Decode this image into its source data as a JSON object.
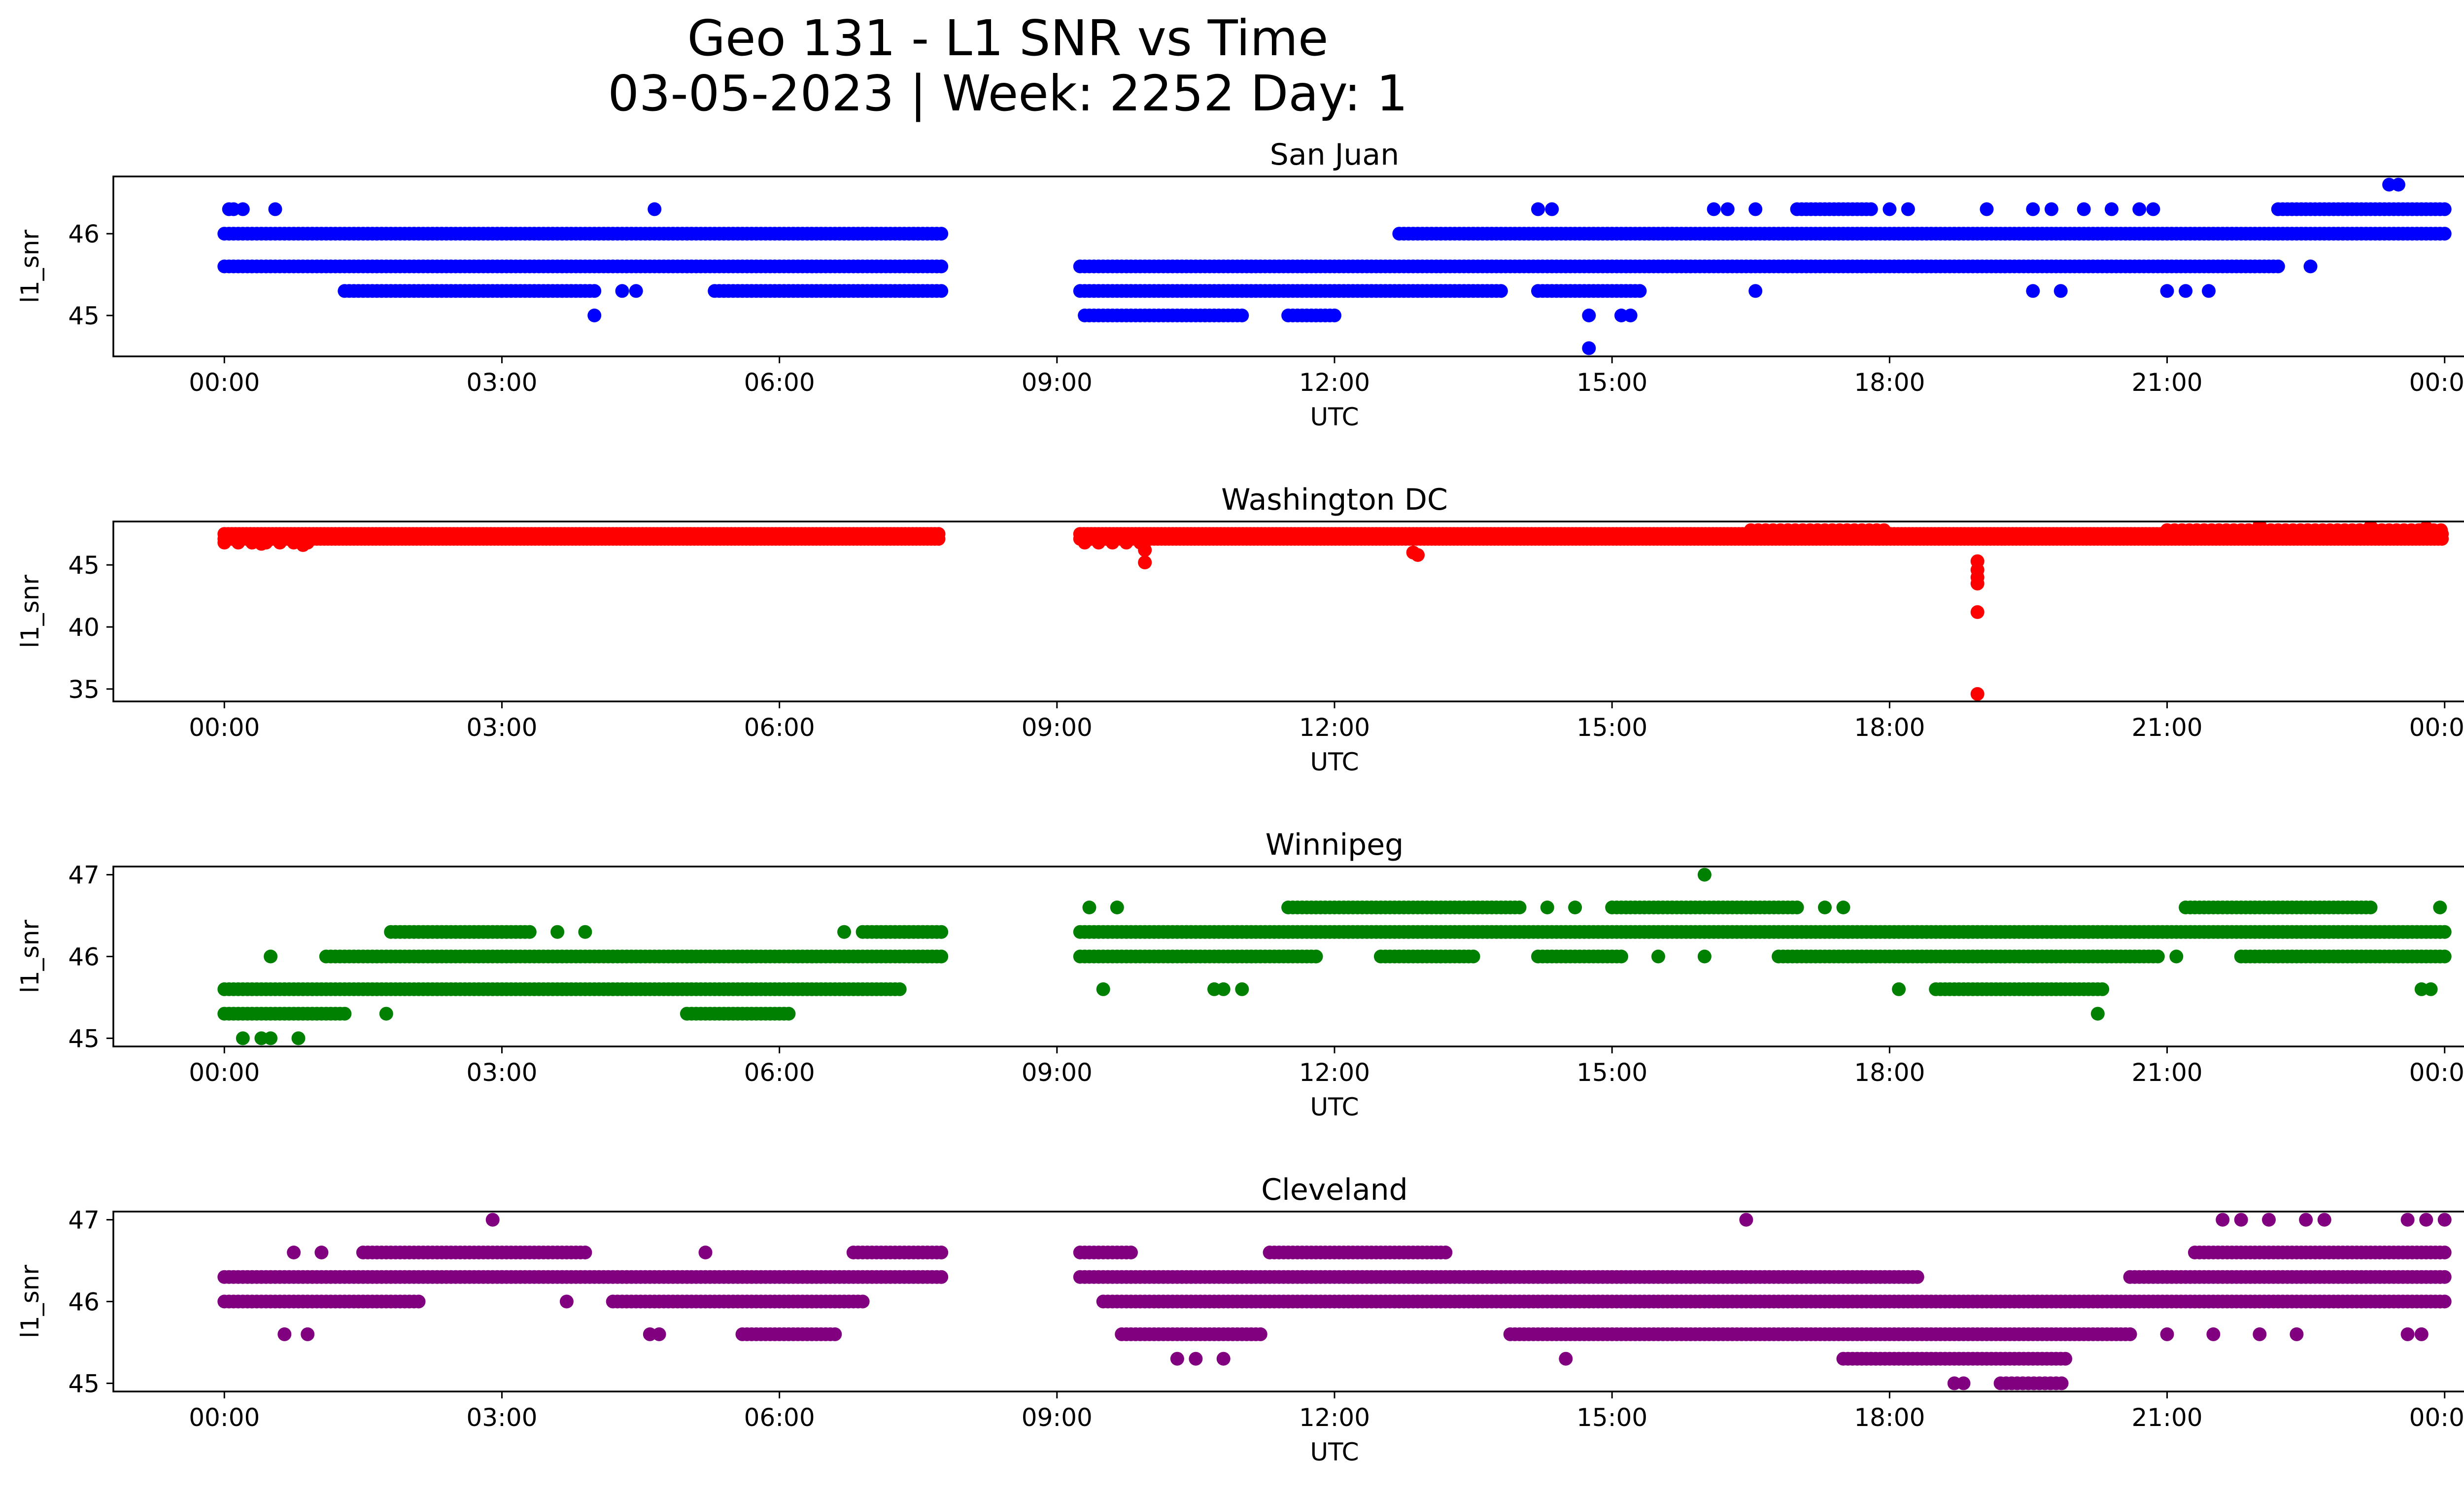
{
  "figure_title_line1": "Geo 131 - L1 SNR vs Time",
  "figure_title_line2": "03-05-2023 | Week: 2252 Day: 1",
  "chart_data": [
    {
      "type": "scatter",
      "title": "San Juan",
      "xlabel": "UTC",
      "ylabel": "l1_snr",
      "color": "#0000ff",
      "x_unit": "hours UTC",
      "xlim": [
        -1.2,
        25.2
      ],
      "x_ticks": [
        0,
        3,
        6,
        9,
        12,
        15,
        18,
        21,
        24
      ],
      "x_tick_labels": [
        "00:00",
        "03:00",
        "06:00",
        "09:00",
        "12:00",
        "15:00",
        "18:00",
        "21:00",
        "00:00"
      ],
      "ylim": [
        44.5,
        46.7
      ],
      "y_ticks": [
        45,
        46
      ],
      "y_tick_labels": [
        "45",
        "46"
      ],
      "levels": [
        {
          "y": 46.0,
          "segments": [
            [
              0.0,
              7.75
            ],
            [
              12.7,
              24.0
            ]
          ],
          "spacing": 0.05
        },
        {
          "y": 45.6,
          "segments": [
            [
              0.0,
              7.75
            ],
            [
              9.25,
              22.2
            ]
          ],
          "spacing": 0.05
        },
        {
          "y": 45.3,
          "segments": [
            [
              1.3,
              4.0
            ],
            [
              5.3,
              7.75
            ],
            [
              9.25,
              13.8
            ],
            [
              14.2,
              15.3
            ]
          ],
          "spacing": 0.05
        },
        {
          "y": 45.0,
          "segments": [
            [
              9.3,
              11.0
            ],
            [
              11.5,
              12.0
            ]
          ],
          "spacing": 0.05
        },
        {
          "y": 46.3,
          "segments": [
            [
              17.0,
              17.8
            ],
            [
              22.2,
              24.0
            ]
          ],
          "spacing": 0.05
        }
      ],
      "points": [
        [
          0.05,
          46.3
        ],
        [
          0.1,
          46.3
        ],
        [
          0.2,
          46.3
        ],
        [
          0.55,
          46.3
        ],
        [
          4.65,
          46.3
        ],
        [
          14.2,
          46.3
        ],
        [
          14.35,
          46.3
        ],
        [
          16.1,
          46.3
        ],
        [
          16.25,
          46.3
        ],
        [
          16.55,
          46.3
        ],
        [
          18.0,
          46.3
        ],
        [
          18.2,
          46.3
        ],
        [
          19.05,
          46.3
        ],
        [
          19.55,
          46.3
        ],
        [
          19.75,
          46.3
        ],
        [
          20.1,
          46.3
        ],
        [
          20.4,
          46.3
        ],
        [
          20.7,
          46.3
        ],
        [
          20.85,
          46.3
        ],
        [
          23.4,
          46.6
        ],
        [
          23.5,
          46.6
        ],
        [
          4.0,
          45.0
        ],
        [
          4.3,
          45.3
        ],
        [
          4.45,
          45.3
        ],
        [
          14.75,
          45.0
        ],
        [
          14.75,
          44.6
        ],
        [
          15.1,
          45.0
        ],
        [
          15.2,
          45.0
        ],
        [
          16.55,
          45.3
        ],
        [
          19.55,
          45.3
        ],
        [
          19.85,
          45.3
        ],
        [
          21.0,
          45.3
        ],
        [
          21.2,
          45.3
        ],
        [
          21.45,
          45.3
        ],
        [
          22.55,
          45.6
        ]
      ]
    },
    {
      "type": "scatter",
      "title": "Washington DC",
      "xlabel": "UTC",
      "ylabel": "l1_snr",
      "color": "#ff0000",
      "x_unit": "hours UTC",
      "xlim": [
        -1.2,
        25.2
      ],
      "x_ticks": [
        0,
        3,
        6,
        9,
        12,
        15,
        18,
        21,
        24
      ],
      "x_tick_labels": [
        "00:00",
        "03:00",
        "06:00",
        "09:00",
        "12:00",
        "15:00",
        "18:00",
        "21:00",
        "00:00"
      ],
      "ylim": [
        34,
        48.5
      ],
      "y_ticks": [
        35,
        40,
        45
      ],
      "y_tick_labels": [
        "35",
        "40",
        "45"
      ],
      "levels": [
        {
          "y": 47.1,
          "segments": [
            [
              0.0,
              7.75
            ],
            [
              9.25,
              24.0
            ]
          ],
          "spacing": 0.04
        },
        {
          "y": 47.5,
          "segments": [
            [
              0.0,
              7.75
            ],
            [
              9.25,
              24.0
            ]
          ],
          "spacing": 0.04
        },
        {
          "y": 47.8,
          "segments": [
            [
              16.5,
              18.0
            ],
            [
              21.0,
              24.0
            ]
          ],
          "spacing": 0.08
        },
        {
          "y": 46.8,
          "segments": [
            [
              0.0,
              0.9
            ],
            [
              9.3,
              10.0
            ]
          ],
          "spacing": 0.15
        }
      ],
      "points": [
        [
          0.4,
          46.7
        ],
        [
          0.85,
          46.6
        ],
        [
          9.95,
          46.2
        ],
        [
          9.95,
          45.2
        ],
        [
          12.85,
          46.0
        ],
        [
          12.9,
          45.8
        ],
        [
          18.95,
          45.3
        ],
        [
          18.95,
          44.6
        ],
        [
          18.95,
          44.0
        ],
        [
          18.95,
          43.5
        ],
        [
          18.95,
          41.2
        ],
        [
          18.95,
          34.6
        ],
        [
          22.0,
          48.2
        ],
        [
          23.2,
          48.1
        ],
        [
          23.8,
          48.0
        ]
      ]
    },
    {
      "type": "scatter",
      "title": "Winnipeg",
      "xlabel": "UTC",
      "ylabel": "l1_snr",
      "color": "#008000",
      "x_unit": "hours UTC",
      "xlim": [
        -1.2,
        25.2
      ],
      "x_ticks": [
        0,
        3,
        6,
        9,
        12,
        15,
        18,
        21,
        24
      ],
      "x_tick_labels": [
        "00:00",
        "03:00",
        "06:00",
        "09:00",
        "12:00",
        "15:00",
        "18:00",
        "21:00",
        "00:00"
      ],
      "ylim": [
        44.9,
        47.1
      ],
      "y_ticks": [
        45,
        46,
        47
      ],
      "y_tick_labels": [
        "45",
        "46",
        "47"
      ],
      "levels": [
        {
          "y": 46.3,
          "segments": [
            [
              1.8,
              3.3
            ],
            [
              6.9,
              7.75
            ],
            [
              9.25,
              24.0
            ]
          ],
          "spacing": 0.05
        },
        {
          "y": 46.0,
          "segments": [
            [
              1.1,
              7.75
            ],
            [
              9.25,
              11.8
            ],
            [
              12.5,
              13.5
            ],
            [
              14.2,
              15.1
            ],
            [
              16.8,
              20.9
            ],
            [
              21.8,
              24.0
            ]
          ],
          "spacing": 0.05
        },
        {
          "y": 45.6,
          "segments": [
            [
              0.0,
              7.3
            ],
            [
              18.5,
              20.3
            ]
          ],
          "spacing": 0.05
        },
        {
          "y": 45.3,
          "segments": [
            [
              0.0,
              1.3
            ],
            [
              5.0,
              6.1
            ]
          ],
          "spacing": 0.05
        },
        {
          "y": 46.6,
          "segments": [
            [
              11.5,
              14.0
            ],
            [
              15.0,
              17.0
            ],
            [
              21.2,
              23.2
            ]
          ],
          "spacing": 0.05
        }
      ],
      "points": [
        [
          0.2,
          45.0
        ],
        [
          0.4,
          45.0
        ],
        [
          0.5,
          45.0
        ],
        [
          0.8,
          45.0
        ],
        [
          0.5,
          46.0
        ],
        [
          1.75,
          45.3
        ],
        [
          3.9,
          46.3
        ],
        [
          3.6,
          46.3
        ],
        [
          6.7,
          46.3
        ],
        [
          9.35,
          46.6
        ],
        [
          9.65,
          46.6
        ],
        [
          9.5,
          45.6
        ],
        [
          10.7,
          45.6
        ],
        [
          10.8,
          45.6
        ],
        [
          11.0,
          45.6
        ],
        [
          14.3,
          46.6
        ],
        [
          14.6,
          46.6
        ],
        [
          15.5,
          46.0
        ],
        [
          16.0,
          46.0
        ],
        [
          16.0,
          47.0
        ],
        [
          17.3,
          46.6
        ],
        [
          17.5,
          46.6
        ],
        [
          18.1,
          45.6
        ],
        [
          20.25,
          45.3
        ],
        [
          21.1,
          46.0
        ],
        [
          23.75,
          45.6
        ],
        [
          23.85,
          45.6
        ],
        [
          23.95,
          46.6
        ]
      ]
    },
    {
      "type": "scatter",
      "title": "Cleveland",
      "xlabel": "UTC",
      "ylabel": "l1_snr",
      "color": "#800080",
      "x_unit": "hours UTC",
      "xlim": [
        -1.2,
        25.2
      ],
      "x_ticks": [
        0,
        3,
        6,
        9,
        12,
        15,
        18,
        21,
        24
      ],
      "x_tick_labels": [
        "00:00",
        "03:00",
        "06:00",
        "09:00",
        "12:00",
        "15:00",
        "18:00",
        "21:00",
        "00:00"
      ],
      "ylim": [
        44.9,
        47.1
      ],
      "y_ticks": [
        45,
        46,
        47
      ],
      "y_tick_labels": [
        "45",
        "46",
        "47"
      ],
      "levels": [
        {
          "y": 46.3,
          "segments": [
            [
              0.0,
              7.75
            ],
            [
              9.25,
              18.3
            ],
            [
              20.6,
              24.0
            ]
          ],
          "spacing": 0.05
        },
        {
          "y": 46.0,
          "segments": [
            [
              0.0,
              2.1
            ],
            [
              4.2,
              6.9
            ],
            [
              9.5,
              24.0
            ]
          ],
          "spacing": 0.05
        },
        {
          "y": 46.6,
          "segments": [
            [
              1.5,
              3.9
            ],
            [
              6.8,
              7.75
            ],
            [
              9.25,
              9.8
            ],
            [
              11.3,
              13.2
            ],
            [
              21.3,
              24.0
            ]
          ],
          "spacing": 0.05
        },
        {
          "y": 45.6,
          "segments": [
            [
              5.6,
              6.6
            ],
            [
              9.7,
              11.2
            ],
            [
              13.9,
              20.6
            ]
          ],
          "spacing": 0.05
        },
        {
          "y": 45.3,
          "segments": [
            [
              17.5,
              19.9
            ]
          ],
          "spacing": 0.05
        },
        {
          "y": 45.0,
          "segments": [
            [
              19.2,
              19.9
            ]
          ],
          "spacing": 0.06
        }
      ],
      "points": [
        [
          2.9,
          47.0
        ],
        [
          0.65,
          45.6
        ],
        [
          0.9,
          45.6
        ],
        [
          0.75,
          46.6
        ],
        [
          1.05,
          46.6
        ],
        [
          3.7,
          46.0
        ],
        [
          4.6,
          45.6
        ],
        [
          4.7,
          45.6
        ],
        [
          5.2,
          46.6
        ],
        [
          10.3,
          45.3
        ],
        [
          10.5,
          45.3
        ],
        [
          10.8,
          45.3
        ],
        [
          14.5,
          45.3
        ],
        [
          16.45,
          47.0
        ],
        [
          18.7,
          45.0
        ],
        [
          18.8,
          45.0
        ],
        [
          21.6,
          47.0
        ],
        [
          21.8,
          47.0
        ],
        [
          22.1,
          47.0
        ],
        [
          22.5,
          47.0
        ],
        [
          22.7,
          47.0
        ],
        [
          23.6,
          47.0
        ],
        [
          23.8,
          47.0
        ],
        [
          24.0,
          47.0
        ],
        [
          21.0,
          45.6
        ],
        [
          21.5,
          45.6
        ],
        [
          22.0,
          45.6
        ],
        [
          22.4,
          45.6
        ],
        [
          23.6,
          45.6
        ],
        [
          23.75,
          45.6
        ]
      ]
    }
  ]
}
